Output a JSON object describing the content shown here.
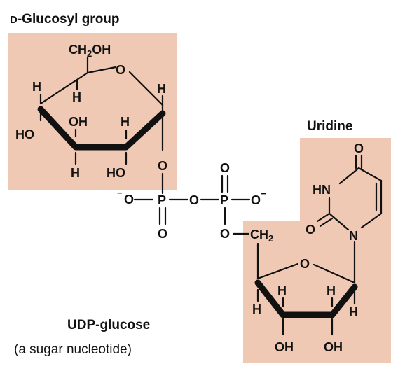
{
  "labels": {
    "glucosyl_prefix": "D",
    "glucosyl_rest": "-Glucosyl group",
    "uridine": "Uridine",
    "udp_glucose": "UDP-glucose",
    "sugar_nucleotide": "(a sugar nucleotide)"
  },
  "atoms": {
    "ch2": "CH",
    "two": "2",
    "oh": "OH",
    "o": "O",
    "h": "H",
    "ho": "HO",
    "p": "P",
    "n": "N",
    "hn": "HN",
    "minus": "−",
    "minus_o": "−O"
  },
  "colors": {
    "box": "#f0c9b5",
    "ink": "#111111"
  }
}
